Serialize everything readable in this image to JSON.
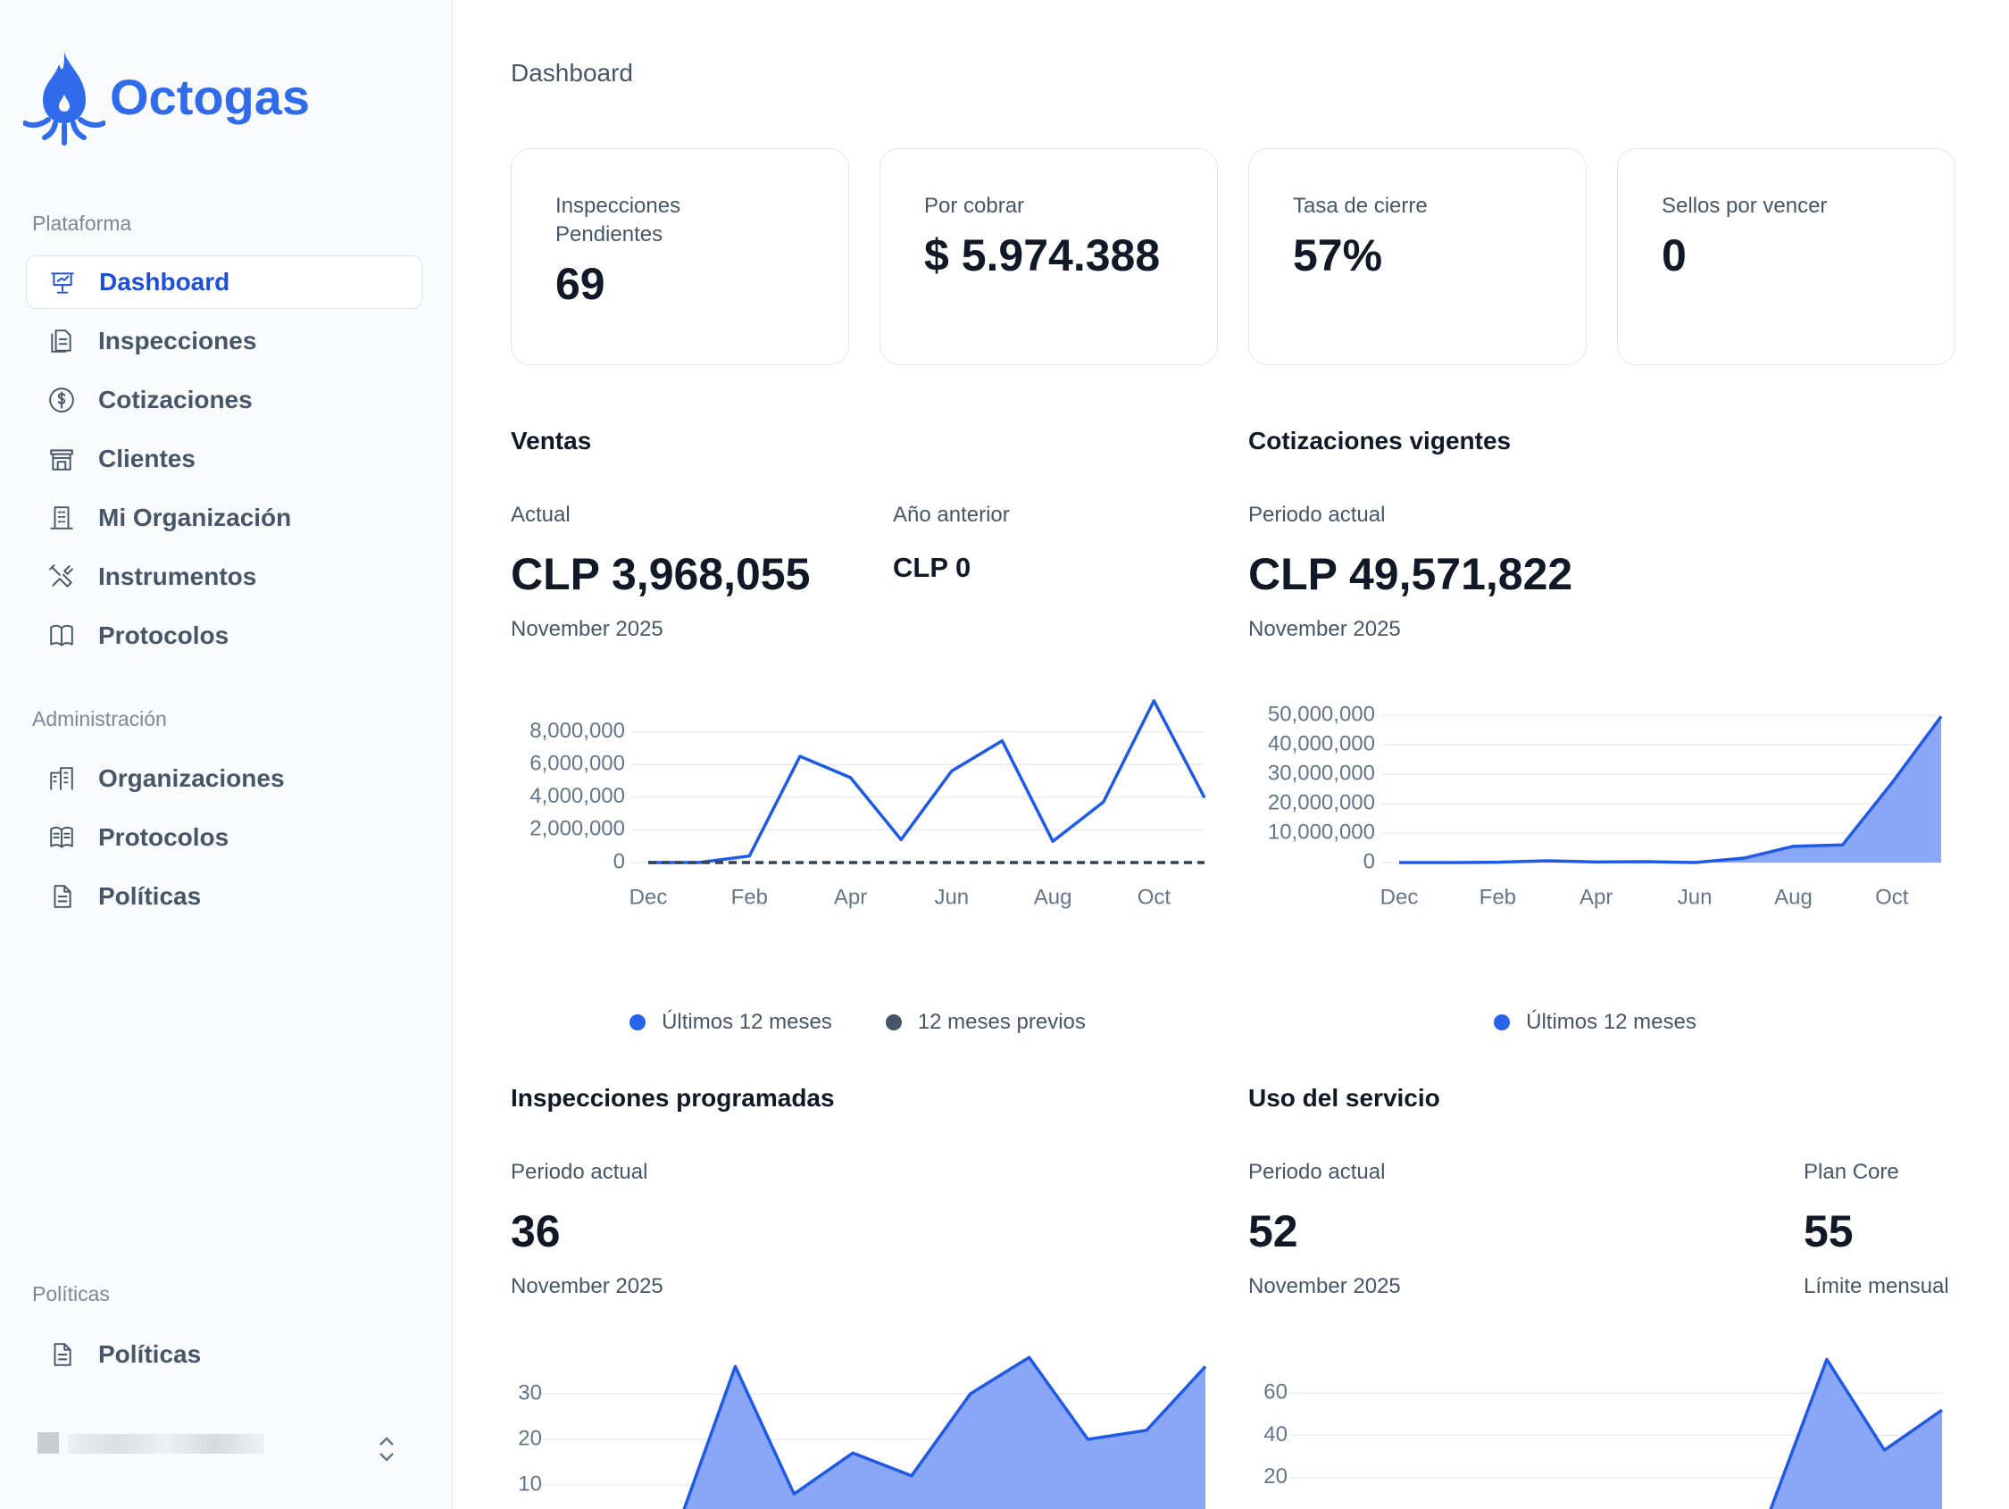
{
  "sidebar": {
    "brand": "Octogas",
    "sections": [
      {
        "title": "Plataforma",
        "items": [
          "Dashboard",
          "Inspecciones",
          "Cotizaciones",
          "Clientes",
          "Mi Organización",
          "Instrumentos",
          "Protocolos"
        ]
      },
      {
        "title": "Administración",
        "items": [
          "Organizaciones",
          "Protocolos",
          "Políticas"
        ]
      },
      {
        "title": "Políticas",
        "items": [
          "Políticas"
        ]
      }
    ]
  },
  "header": {
    "title": "Dashboard"
  },
  "stats": [
    {
      "label": "Inspecciones Pendientes",
      "value": "69"
    },
    {
      "label": "Por cobrar",
      "value": "$ 5.974.388"
    },
    {
      "label": "Tasa de cierre",
      "value": "57%"
    },
    {
      "label": "Sellos por vencer",
      "value": "0"
    }
  ],
  "chart_data": [
    {
      "type": "line",
      "title": "Ventas",
      "metrics": [
        {
          "label": "Actual",
          "value": "CLP 3,968,055",
          "note": "November 2025"
        },
        {
          "label": "Año anterior",
          "value": "CLP 0"
        }
      ],
      "categories": [
        "Dec",
        null,
        "Feb",
        null,
        "Apr",
        null,
        "Jun",
        null,
        "Aug",
        null,
        "Oct",
        null
      ],
      "series": [
        {
          "name": "Últimos 12 meses",
          "color": "#1f5ae6",
          "values": [
            0,
            0,
            400000,
            6500000,
            5200000,
            1400000,
            5600000,
            7450000,
            1300000,
            3700000,
            9900000,
            3968055
          ]
        },
        {
          "name": "12 meses previos",
          "color": "#334155",
          "dashed": true,
          "values": [
            0,
            0,
            0,
            0,
            0,
            0,
            0,
            0,
            0,
            0,
            0,
            0
          ]
        }
      ],
      "ylim": [
        0,
        10000000
      ],
      "yticks": [
        0,
        {
          "value": 2000000,
          "label": "2,000,000"
        },
        {
          "value": 4000000,
          "label": "4,000,000"
        },
        {
          "value": 6000000,
          "label": "6,000,000"
        },
        {
          "value": 8000000,
          "label": "8,000,000"
        }
      ],
      "grid": true,
      "legend": "bottom"
    },
    {
      "type": "area",
      "title": "Cotizaciones vigentes",
      "metrics": [
        {
          "label": "Periodo actual",
          "value": "CLP 49,571,822",
          "note": "November 2025"
        }
      ],
      "categories": [
        "Dec",
        null,
        "Feb",
        null,
        "Apr",
        null,
        "Jun",
        null,
        "Aug",
        null,
        "Oct",
        null
      ],
      "series": [
        {
          "name": "Últimos 12 meses",
          "color": "#1f5ae6",
          "fill": "#8aa6f7",
          "values": [
            0,
            0,
            100000,
            600000,
            200000,
            300000,
            0,
            1500000,
            5500000,
            6000000,
            27000000,
            49571822
          ]
        }
      ],
      "ylim": [
        0,
        50000000
      ],
      "yticks": [
        0,
        {
          "value": 10000000,
          "label": "10,000,000"
        },
        {
          "value": 20000000,
          "label": "20,000,000"
        },
        {
          "value": 30000000,
          "label": "30,000,000"
        },
        {
          "value": 40000000,
          "label": "40,000,000"
        },
        {
          "value": 50000000,
          "label": "50,000,000"
        }
      ],
      "grid": true,
      "legend": "bottom"
    },
    {
      "type": "area",
      "title": "Inspecciones programadas",
      "metrics": [
        {
          "label": "Periodo actual",
          "value": "36",
          "note": "November 2025"
        }
      ],
      "series": [
        {
          "color": "#1f5ae6",
          "fill": "#8aa6f7",
          "values": [
            0,
            0,
            0,
            36,
            8,
            17,
            12,
            30,
            38,
            20,
            22,
            36
          ]
        }
      ],
      "ylim": [
        0,
        40
      ],
      "yticks": [
        10,
        20,
        30
      ],
      "grid": true
    },
    {
      "type": "area",
      "title": "Uso del servicio",
      "metrics": [
        {
          "label": "Periodo actual",
          "value": "52",
          "note": "November 2025"
        },
        {
          "label": "Plan Core",
          "value": "55",
          "note": "Límite mensual"
        }
      ],
      "series": [
        {
          "color": "#1f5ae6",
          "fill": "#8aa6f7",
          "values": [
            0,
            0,
            0,
            0,
            0,
            0,
            0,
            0,
            3,
            76,
            33,
            52
          ]
        }
      ],
      "ylim": [
        0,
        80
      ],
      "yticks": [
        20,
        40,
        60
      ],
      "grid": true
    }
  ]
}
